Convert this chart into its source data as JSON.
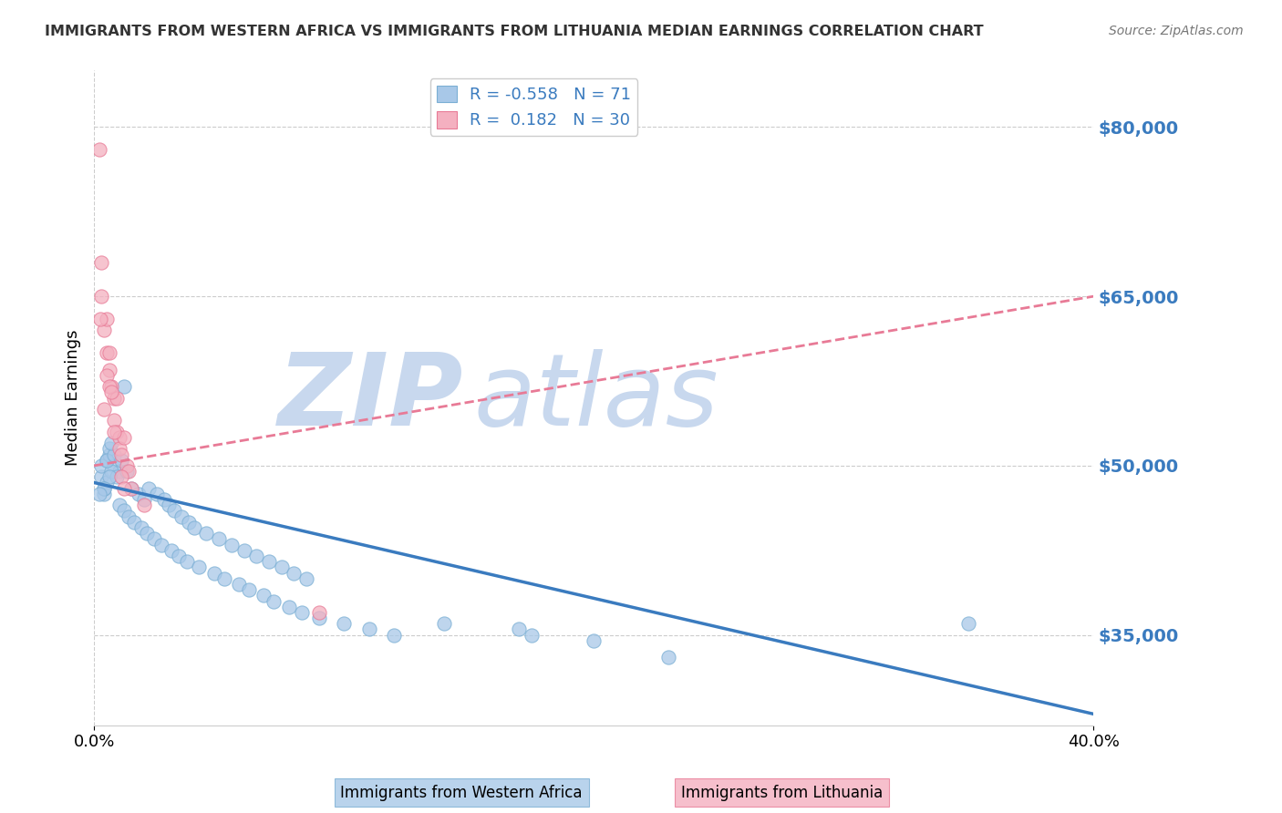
{
  "title": "IMMIGRANTS FROM WESTERN AFRICA VS IMMIGRANTS FROM LITHUANIA MEDIAN EARNINGS CORRELATION CHART",
  "source": "Source: ZipAtlas.com",
  "ylabel": "Median Earnings",
  "right_yticks": [
    35000,
    50000,
    65000,
    80000
  ],
  "right_yticklabels": [
    "$35,000",
    "$50,000",
    "$65,000",
    "$80,000"
  ],
  "xlim": [
    0.0,
    40.0
  ],
  "ylim": [
    27000,
    85000
  ],
  "blue_label": "Immigrants from Western Africa",
  "pink_label": "Immigrants from Lithuania",
  "blue_R": "-0.558",
  "blue_N": "71",
  "pink_R": "0.182",
  "pink_N": "30",
  "blue_color": "#a8c8e8",
  "pink_color": "#f4b0c0",
  "blue_edge_color": "#7bafd4",
  "pink_edge_color": "#e87a96",
  "blue_line_color": "#3a7bbf",
  "pink_line_color": "#e87a96",
  "watermark_zip": "ZIP",
  "watermark_atlas": "atlas",
  "watermark_color": "#c8d8ee",
  "title_color": "#333333",
  "source_color": "#777777",
  "axis_label_color": "#3a7bbf",
  "legend_text_color": "#3a7bbf",
  "blue_scatter_x": [
    0.3,
    0.5,
    0.6,
    0.4,
    0.5,
    0.3,
    0.8,
    1.0,
    0.6,
    0.4,
    0.7,
    0.9,
    1.2,
    0.5,
    0.6,
    0.8,
    1.1,
    1.3,
    0.7,
    0.4,
    1.5,
    1.8,
    2.0,
    2.2,
    2.5,
    2.8,
    3.0,
    3.2,
    3.5,
    3.8,
    4.0,
    4.5,
    5.0,
    5.5,
    6.0,
    6.5,
    7.0,
    7.5,
    8.0,
    8.5,
    1.0,
    1.2,
    1.4,
    1.6,
    1.9,
    2.1,
    2.4,
    2.7,
    3.1,
    3.4,
    3.7,
    4.2,
    4.8,
    5.2,
    5.8,
    6.2,
    6.8,
    7.2,
    7.8,
    8.3,
    9.0,
    10.0,
    11.0,
    12.0,
    14.0,
    17.0,
    17.5,
    20.0,
    23.0,
    35.0,
    0.2
  ],
  "blue_scatter_y": [
    49000,
    50500,
    51000,
    47500,
    48500,
    50000,
    50000,
    49500,
    51500,
    48000,
    49500,
    49000,
    57000,
    50500,
    49000,
    51000,
    50500,
    49500,
    52000,
    48000,
    48000,
    47500,
    47000,
    48000,
    47500,
    47000,
    46500,
    46000,
    45500,
    45000,
    44500,
    44000,
    43500,
    43000,
    42500,
    42000,
    41500,
    41000,
    40500,
    40000,
    46500,
    46000,
    45500,
    45000,
    44500,
    44000,
    43500,
    43000,
    42500,
    42000,
    41500,
    41000,
    40500,
    40000,
    39500,
    39000,
    38500,
    38000,
    37500,
    37000,
    36500,
    36000,
    35500,
    35000,
    36000,
    35500,
    35000,
    34500,
    33000,
    36000,
    47500
  ],
  "pink_scatter_x": [
    0.2,
    0.3,
    0.4,
    0.5,
    0.5,
    0.6,
    0.7,
    0.8,
    0.8,
    0.9,
    1.0,
    1.0,
    1.1,
    1.2,
    1.3,
    1.4,
    0.3,
    0.6,
    0.9,
    1.5,
    0.4,
    0.5,
    0.6,
    0.7,
    0.8,
    1.1,
    1.2,
    2.0,
    0.25,
    9.0
  ],
  "pink_scatter_y": [
    78000,
    65000,
    62000,
    63000,
    60000,
    58500,
    57000,
    56000,
    54000,
    53000,
    52500,
    51500,
    51000,
    52500,
    50000,
    49500,
    68000,
    60000,
    56000,
    48000,
    55000,
    58000,
    57000,
    56500,
    53000,
    49000,
    48000,
    46500,
    63000,
    37000
  ],
  "blue_trend_x": [
    0.0,
    40.0
  ],
  "blue_trend_y": [
    48500,
    28000
  ],
  "pink_trend_x": [
    0.0,
    40.0
  ],
  "pink_trend_y": [
    50000,
    65000
  ]
}
